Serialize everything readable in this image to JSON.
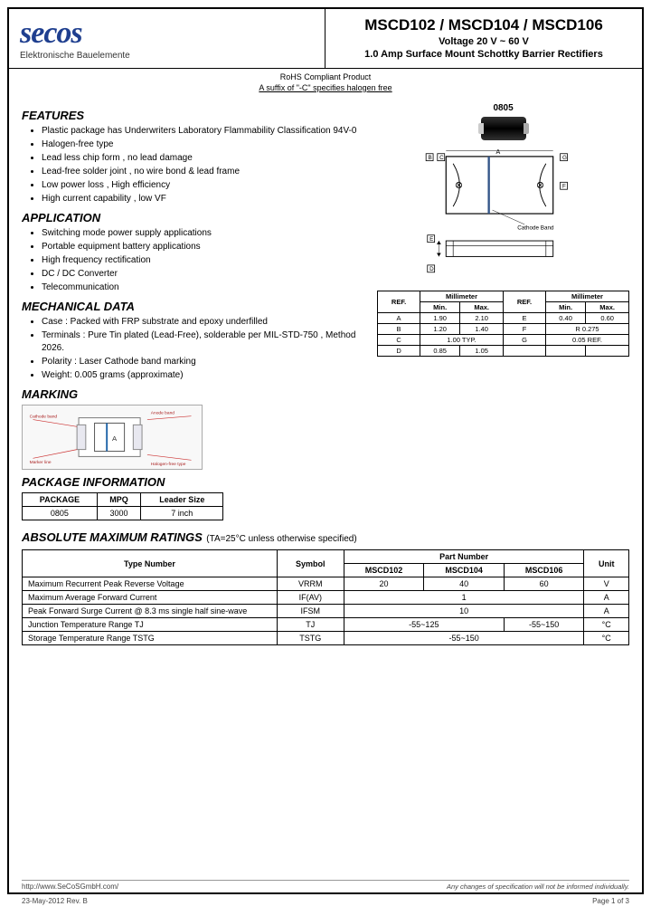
{
  "logo": {
    "text": "secos",
    "subtitle": "Elektronische Bauelemente"
  },
  "title": {
    "main": "MSCD102 / MSCD104 / MSCD106",
    "voltage": "Voltage 20 V ~ 60 V",
    "desc": "1.0 Amp Surface Mount Schottky Barrier Rectifiers"
  },
  "rohs": {
    "line1": "RoHS Compliant Product",
    "line2": "A suffix of \"-C\" specifies halogen free"
  },
  "sections": {
    "features": "FEATURES",
    "application": "APPLICATION",
    "mechanical": "MECHANICAL DATA",
    "marking": "MARKING",
    "package": "PACKAGE INFORMATION",
    "ratings": "ABSOLUTE MAXIMUM RATINGS",
    "ratings_note": "(TA=25°C unless otherwise specified)"
  },
  "features": [
    "Plastic package has Underwriters Laboratory Flammability Classification 94V-0",
    "Halogen-free type",
    "Lead less chip form , no lead damage",
    "Lead-free solder joint , no wire bond & lead frame",
    "Low power loss , High efficiency",
    "High current capability , low VF"
  ],
  "applications": [
    "Switching mode power supply applications",
    "Portable equipment battery applications",
    "High frequency rectification",
    "DC / DC Converter",
    "Telecommunication"
  ],
  "mechanical": [
    "Case : Packed with FRP substrate and epoxy underfilled",
    "Terminals : Pure Tin plated (Lead-Free), solderable per MIL-STD-750 , Method 2026.",
    "Polarity : Laser Cathode band marking",
    "Weight: 0.005 grams (approximate)"
  ],
  "chip_label": "0805",
  "cathode_label": "Cathode Band",
  "dim_table": {
    "headers": [
      "REF.",
      "Min.",
      "Max.",
      "REF.",
      "Min.",
      "Max."
    ],
    "header_groups": [
      "",
      "Millimeter",
      "",
      "Millimeter"
    ],
    "rows": [
      [
        "A",
        "1.90",
        "2.10",
        "E",
        "0.40",
        "0.60"
      ],
      [
        "B",
        "1.20",
        "1.40",
        "F",
        "R 0.275",
        ""
      ],
      [
        "C",
        "1.00 TYP.",
        "",
        "G",
        "0.05 REF.",
        ""
      ],
      [
        "D",
        "0.85",
        "1.05",
        "",
        "",
        ""
      ]
    ]
  },
  "pkg_table": {
    "headers": [
      "PACKAGE",
      "MPQ",
      "Leader Size"
    ],
    "row": [
      "0805",
      "3000",
      "7 inch"
    ]
  },
  "rating_table": {
    "headers": {
      "type": "Type Number",
      "symbol": "Symbol",
      "part": "Part Number",
      "p1": "MSCD102",
      "p2": "MSCD104",
      "p3": "MSCD106",
      "unit": "Unit"
    },
    "rows": [
      {
        "type": "Maximum Recurrent Peak Reverse Voltage",
        "sym": "VRRM",
        "v": [
          "20",
          "40",
          "60"
        ],
        "unit": "V"
      },
      {
        "type": "Maximum Average Forward Current",
        "sym": "IF(AV)",
        "v": [
          "1"
        ],
        "span": 3,
        "unit": "A"
      },
      {
        "type": "Peak Forward Surge Current @ 8.3 ms single half sine-wave",
        "sym": "IFSM",
        "v": [
          "10"
        ],
        "span": 3,
        "unit": "A"
      },
      {
        "type": "Junction Temperature Range TJ",
        "sym": "TJ",
        "v": [
          "-55~125",
          "-55~150"
        ],
        "spans": [
          2,
          1
        ],
        "unit": "°C"
      },
      {
        "type": "Storage Temperature Range TSTG",
        "sym": "TSTG",
        "v": [
          "-55~150"
        ],
        "span": 3,
        "unit": "°C"
      }
    ]
  },
  "footer": {
    "url": "http://www.SeCoSGmbH.com/",
    "disclaimer": "Any changes of specification will not be informed individually.",
    "date": "23-May-2012 Rev. B",
    "page": "Page  1  of  3"
  },
  "colors": {
    "brand": "#1f3f8f",
    "line": "#000000",
    "draw": "#222222"
  }
}
